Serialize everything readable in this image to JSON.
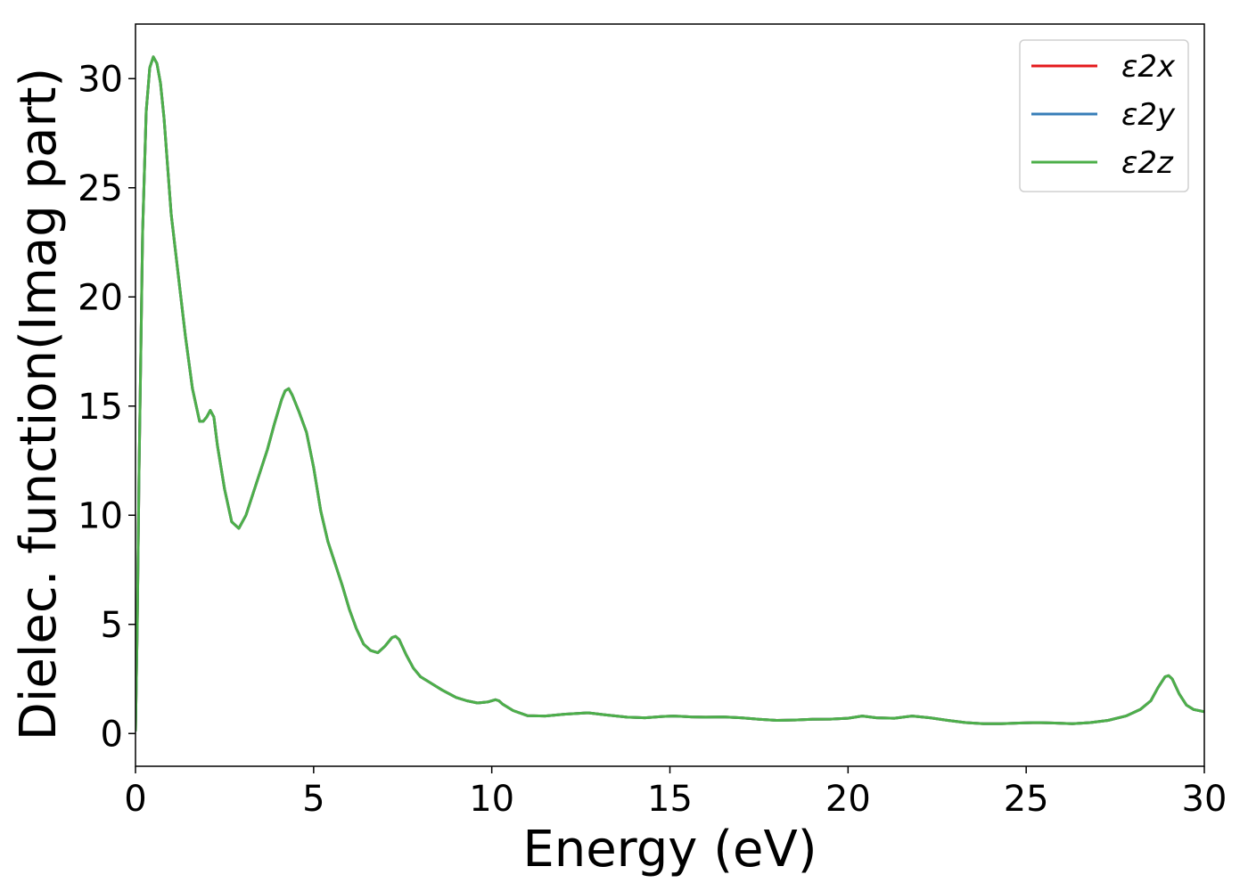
{
  "chart_data": {
    "type": "line",
    "title": "",
    "xlabel": "Energy (eV)",
    "ylabel": "Dielec. function(Imag part)",
    "xlim": [
      0,
      30
    ],
    "ylim": [
      -1.5,
      32.5
    ],
    "xticks": [
      0,
      5,
      10,
      15,
      20,
      25,
      30
    ],
    "yticks": [
      0,
      5,
      10,
      15,
      20,
      25,
      30
    ],
    "grid": false,
    "legend_position": "top-right",
    "x": [
      0.0,
      0.05,
      0.1,
      0.2,
      0.3,
      0.4,
      0.5,
      0.6,
      0.7,
      0.8,
      0.9,
      1.0,
      1.2,
      1.4,
      1.6,
      1.8,
      1.9,
      2.0,
      2.1,
      2.2,
      2.3,
      2.5,
      2.7,
      2.9,
      3.1,
      3.3,
      3.5,
      3.7,
      3.9,
      4.1,
      4.2,
      4.3,
      4.4,
      4.6,
      4.8,
      5.0,
      5.2,
      5.4,
      5.6,
      5.8,
      6.0,
      6.2,
      6.4,
      6.6,
      6.8,
      7.0,
      7.2,
      7.3,
      7.4,
      7.6,
      7.8,
      8.0,
      8.3,
      8.6,
      9.0,
      9.3,
      9.6,
      9.9,
      10.1,
      10.2,
      10.3,
      10.6,
      11.0,
      11.5,
      12.0,
      12.7,
      13.2,
      13.8,
      14.3,
      14.8,
      15.1,
      15.6,
      16.0,
      16.5,
      17.0,
      17.5,
      18.0,
      18.5,
      19.0,
      19.5,
      20.0,
      20.4,
      20.8,
      21.3,
      21.8,
      22.3,
      22.8,
      23.3,
      23.8,
      24.3,
      24.8,
      25.3,
      25.8,
      26.3,
      26.8,
      27.3,
      27.8,
      28.2,
      28.5,
      28.7,
      28.9,
      29.0,
      29.1,
      29.3,
      29.5,
      29.7,
      30.0
    ],
    "series": [
      {
        "name": "ε2x",
        "color": "#e41a1c",
        "y": [
          0.1,
          5.0,
          12.0,
          23.0,
          28.5,
          30.5,
          31.0,
          30.7,
          29.8,
          28.2,
          26.0,
          23.8,
          21.0,
          18.2,
          15.8,
          14.3,
          14.3,
          14.5,
          14.8,
          14.5,
          13.2,
          11.2,
          9.7,
          9.4,
          10.0,
          11.0,
          12.0,
          13.0,
          14.2,
          15.3,
          15.7,
          15.8,
          15.5,
          14.7,
          13.8,
          12.2,
          10.2,
          8.8,
          7.8,
          6.8,
          5.7,
          4.8,
          4.1,
          3.8,
          3.7,
          4.0,
          4.4,
          4.45,
          4.3,
          3.6,
          3.0,
          2.6,
          2.3,
          2.0,
          1.65,
          1.5,
          1.4,
          1.45,
          1.55,
          1.5,
          1.35,
          1.05,
          0.82,
          0.8,
          0.88,
          0.95,
          0.85,
          0.75,
          0.72,
          0.78,
          0.8,
          0.76,
          0.75,
          0.76,
          0.72,
          0.65,
          0.6,
          0.62,
          0.65,
          0.66,
          0.7,
          0.8,
          0.72,
          0.7,
          0.8,
          0.72,
          0.6,
          0.5,
          0.45,
          0.45,
          0.48,
          0.5,
          0.48,
          0.45,
          0.5,
          0.6,
          0.8,
          1.1,
          1.5,
          2.1,
          2.6,
          2.65,
          2.5,
          1.8,
          1.3,
          1.1,
          1.0
        ]
      },
      {
        "name": "ε2y",
        "color": "#377eb8",
        "y": [
          0.1,
          5.0,
          12.0,
          23.0,
          28.5,
          30.5,
          31.0,
          30.7,
          29.8,
          28.2,
          26.0,
          23.8,
          21.0,
          18.2,
          15.8,
          14.3,
          14.3,
          14.5,
          14.8,
          14.5,
          13.2,
          11.2,
          9.7,
          9.4,
          10.0,
          11.0,
          12.0,
          13.0,
          14.2,
          15.3,
          15.7,
          15.8,
          15.5,
          14.7,
          13.8,
          12.2,
          10.2,
          8.8,
          7.8,
          6.8,
          5.7,
          4.8,
          4.1,
          3.8,
          3.7,
          4.0,
          4.4,
          4.45,
          4.3,
          3.6,
          3.0,
          2.6,
          2.3,
          2.0,
          1.65,
          1.5,
          1.4,
          1.45,
          1.55,
          1.5,
          1.35,
          1.05,
          0.82,
          0.8,
          0.88,
          0.95,
          0.85,
          0.75,
          0.72,
          0.78,
          0.8,
          0.76,
          0.75,
          0.76,
          0.72,
          0.65,
          0.6,
          0.62,
          0.65,
          0.66,
          0.7,
          0.8,
          0.72,
          0.7,
          0.8,
          0.72,
          0.6,
          0.5,
          0.45,
          0.45,
          0.48,
          0.5,
          0.48,
          0.45,
          0.5,
          0.6,
          0.8,
          1.1,
          1.5,
          2.1,
          2.6,
          2.65,
          2.5,
          1.8,
          1.3,
          1.1,
          1.0
        ]
      },
      {
        "name": "ε2z",
        "color": "#4daf4a",
        "y": [
          0.1,
          5.0,
          12.0,
          23.0,
          28.5,
          30.5,
          31.0,
          30.7,
          29.8,
          28.2,
          26.0,
          23.8,
          21.0,
          18.2,
          15.8,
          14.3,
          14.3,
          14.5,
          14.8,
          14.5,
          13.2,
          11.2,
          9.7,
          9.4,
          10.0,
          11.0,
          12.0,
          13.0,
          14.2,
          15.3,
          15.7,
          15.8,
          15.5,
          14.7,
          13.8,
          12.2,
          10.2,
          8.8,
          7.8,
          6.8,
          5.7,
          4.8,
          4.1,
          3.8,
          3.7,
          4.0,
          4.4,
          4.45,
          4.3,
          3.6,
          3.0,
          2.6,
          2.3,
          2.0,
          1.65,
          1.5,
          1.4,
          1.45,
          1.55,
          1.5,
          1.35,
          1.05,
          0.82,
          0.8,
          0.88,
          0.95,
          0.85,
          0.75,
          0.72,
          0.78,
          0.8,
          0.76,
          0.75,
          0.76,
          0.72,
          0.65,
          0.6,
          0.62,
          0.65,
          0.66,
          0.7,
          0.8,
          0.72,
          0.7,
          0.8,
          0.72,
          0.6,
          0.5,
          0.45,
          0.45,
          0.48,
          0.5,
          0.48,
          0.45,
          0.5,
          0.6,
          0.8,
          1.1,
          1.5,
          2.1,
          2.6,
          2.65,
          2.5,
          1.8,
          1.3,
          1.1,
          1.0
        ]
      }
    ]
  }
}
